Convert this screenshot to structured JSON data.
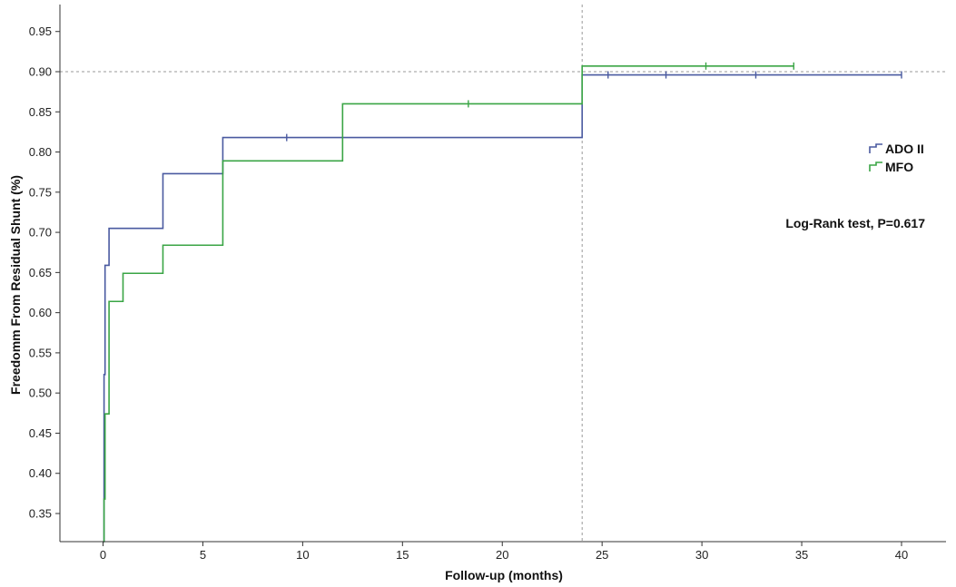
{
  "chart_data": {
    "type": "line",
    "title": "",
    "xlabel": "Follow-up (months)",
    "ylabel": "Freedomm From Residual Shunt (%)",
    "xlim": [
      -2.2,
      42
    ],
    "ylim": [
      0.315,
      0.98
    ],
    "xticks": [
      0,
      5,
      10,
      15,
      20,
      25,
      30,
      35,
      40
    ],
    "yticks": [
      0.35,
      0.4,
      0.45,
      0.5,
      0.55,
      0.6,
      0.65,
      0.7,
      0.75,
      0.8,
      0.85,
      0.9,
      0.95
    ],
    "x_tick_labels": [
      "0",
      "5",
      "10",
      "15",
      "20",
      "25",
      "30",
      "35",
      "40"
    ],
    "y_tick_labels": [
      "0.35",
      "0.40",
      "0.45",
      "0.50",
      "0.55",
      "0.60",
      "0.65",
      "0.70",
      "0.75",
      "0.80",
      "0.85",
      "0.90",
      "0.95"
    ],
    "reference_lines": {
      "horizontal_y": 0.9,
      "vertical_x": 24
    },
    "legend_position": "right",
    "annotation": "Log-Rank test, P=0.617",
    "series": [
      {
        "name": "ADO II",
        "color": "#4a5aa0",
        "steps": [
          [
            0,
            0.315
          ],
          [
            0.05,
            0.523
          ],
          [
            0.1,
            0.659
          ],
          [
            0.3,
            0.705
          ],
          [
            3,
            0.773
          ],
          [
            6,
            0.818
          ],
          [
            24,
            0.896
          ],
          [
            40,
            0.896
          ]
        ],
        "censored_x": [
          9.2,
          25.3,
          28.2,
          32.7,
          40
        ]
      },
      {
        "name": "MFO",
        "color": "#3aa545",
        "steps": [
          [
            0,
            0.315
          ],
          [
            0.05,
            0.368
          ],
          [
            0.1,
            0.474
          ],
          [
            0.3,
            0.614
          ],
          [
            1,
            0.649
          ],
          [
            3,
            0.684
          ],
          [
            6,
            0.789
          ],
          [
            12,
            0.86
          ],
          [
            24,
            0.907
          ],
          [
            34.6,
            0.907
          ]
        ],
        "censored_x": [
          18.3,
          30.2,
          34.6
        ]
      }
    ]
  }
}
